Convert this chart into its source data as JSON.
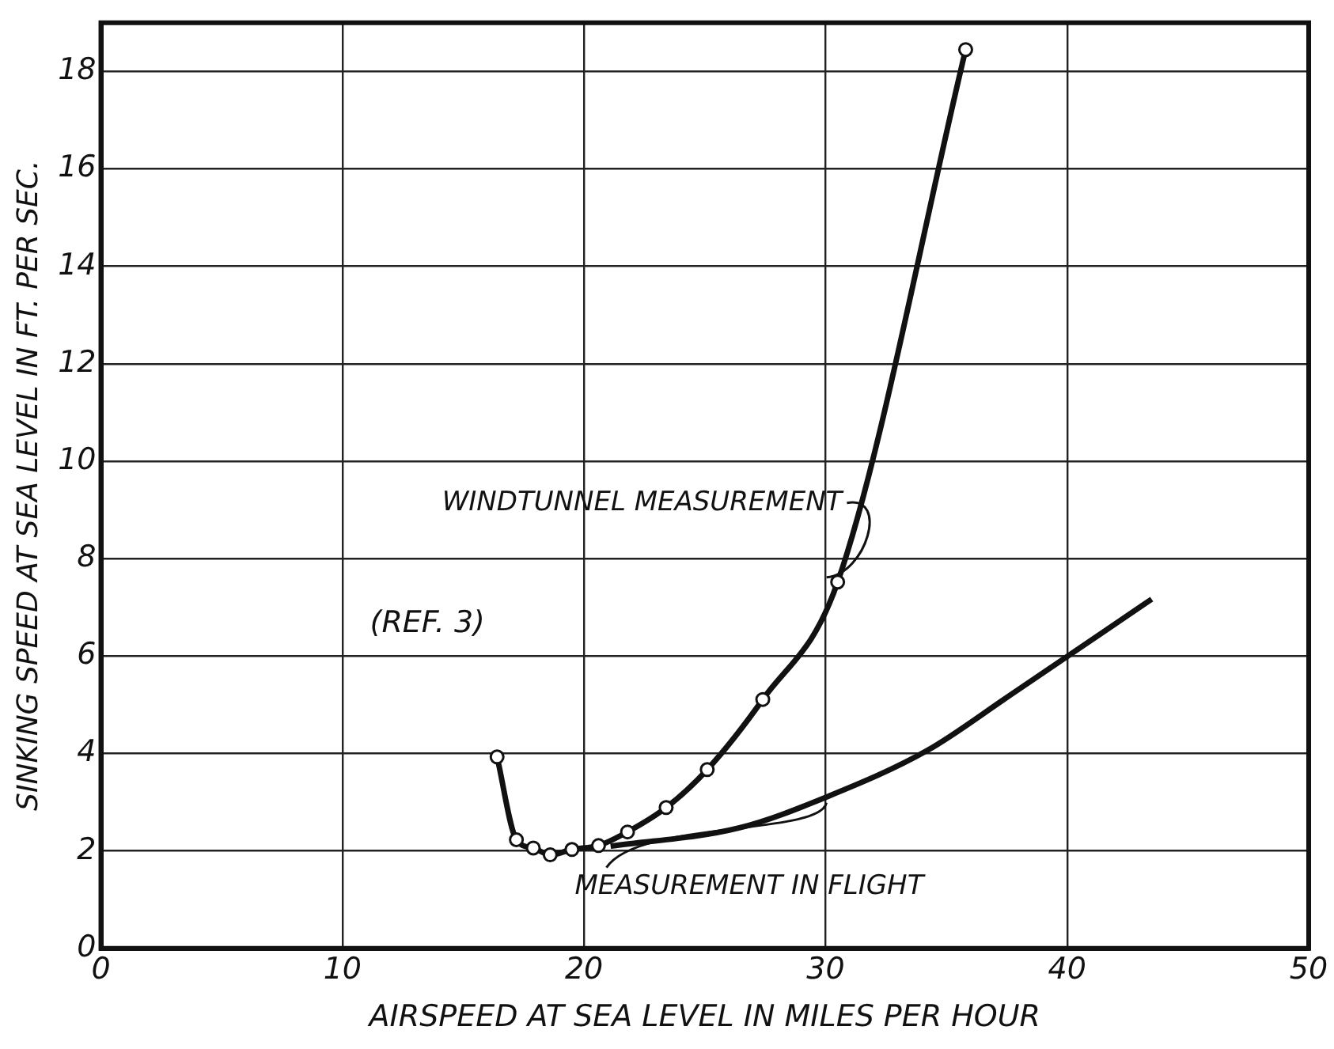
{
  "chart_data": {
    "type": "line",
    "xlabel": "AIRSPEED AT SEA LEVEL IN MILES PER HOUR",
    "ylabel": "SINKING SPEED AT SEA LEVEL IN FT. PER SEC.",
    "xlim": [
      0,
      50
    ],
    "xticks": [
      0,
      10,
      20,
      30,
      40,
      50
    ],
    "ylim": [
      0,
      19
    ],
    "yticks": [
      0,
      2,
      4,
      6,
      8,
      10,
      12,
      14,
      16,
      18
    ],
    "grid": true,
    "legend": false,
    "annotations": [
      "(REF. 3)"
    ],
    "series": [
      {
        "name": "WINDTUNNEL MEASUREMENT",
        "color": "#111111",
        "marker": "circle",
        "x": [
          16.4,
          17.2,
          17.9,
          18.6,
          19.5,
          20.6,
          21.8,
          23.4,
          25.1,
          27.4,
          30.5,
          35.8
        ],
        "values": [
          3.93,
          2.23,
          2.06,
          1.92,
          2.03,
          2.11,
          2.39,
          2.89,
          3.67,
          5.11,
          7.52,
          18.45
        ]
      },
      {
        "name": "MEASUREMENT IN FLIGHT",
        "color": "#111111",
        "marker": "none",
        "x": [
          21.1,
          26.4,
          30.1,
          34.2,
          37.5,
          43.5
        ],
        "values": [
          2.1,
          2.47,
          3.12,
          4.06,
          5.15,
          7.17
        ]
      }
    ]
  }
}
